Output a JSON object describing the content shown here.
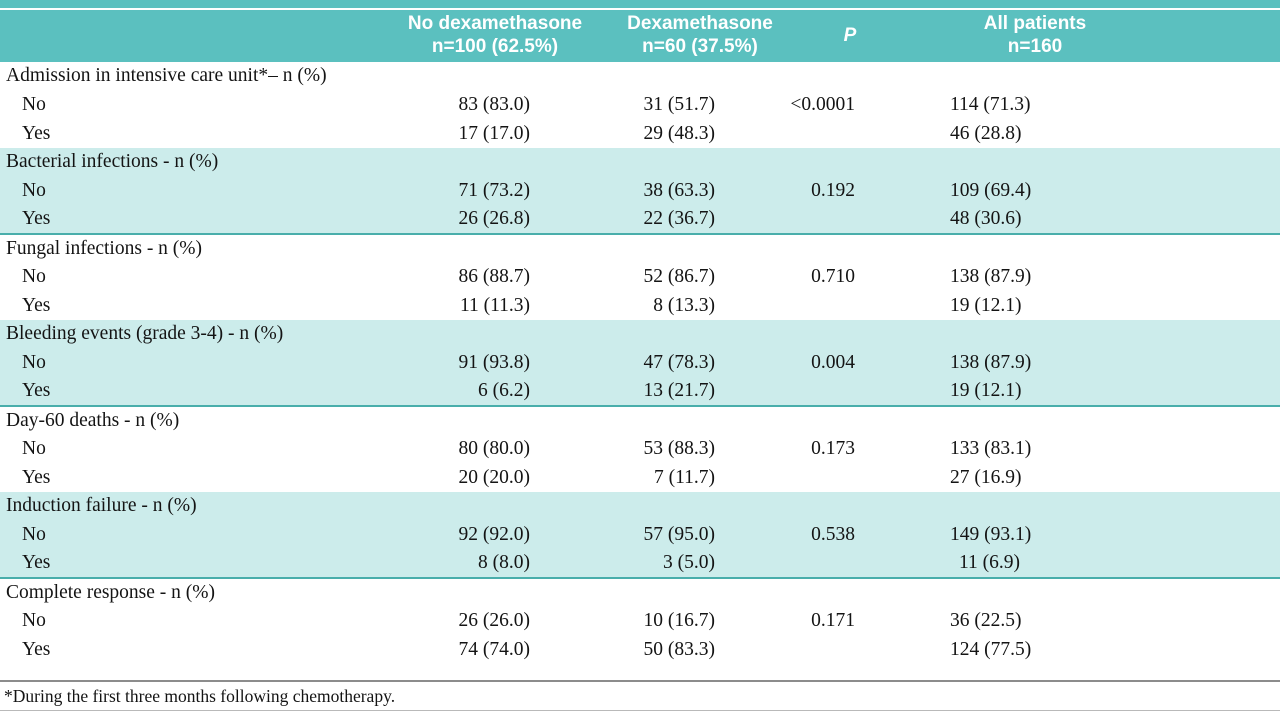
{
  "colors": {
    "header_teal": "#5bc0bf",
    "band_teal": "#cceceb",
    "rule_teal": "#49aeab",
    "rule_gray": "#8c8c8c"
  },
  "table": {
    "header": {
      "blank": "",
      "no_dex_line1": "No dexamethasone",
      "no_dex_line2": "n=100 (62.5%)",
      "dex_line1": "Dexamethasone",
      "dex_line2": "n=60 (37.5%)",
      "p": "P",
      "all_line1": "All patients",
      "all_line2": "n=160"
    },
    "sections": [
      {
        "title": "Admission in intensive care unit*– n (%)",
        "rows": [
          {
            "label": "No",
            "no_dex": "83 (83.0)",
            "dex": "31 (51.7)",
            "p": "<0.0001",
            "all": "114 (71.3)"
          },
          {
            "label": "Yes",
            "no_dex": "17 (17.0)",
            "dex": "29 (48.3)",
            "p": "",
            "all": "46 (28.8)"
          }
        ]
      },
      {
        "title": "Bacterial infections - n (%)",
        "rows": [
          {
            "label": "No",
            "no_dex": "71 (73.2)",
            "dex": "38 (63.3)",
            "p": "0.192",
            "all": "109 (69.4)"
          },
          {
            "label": "Yes",
            "no_dex": "26 (26.8)",
            "dex": "22 (36.7)",
            "p": "",
            "all": "48 (30.6)"
          }
        ]
      },
      {
        "title": "Fungal infections - n (%)",
        "rows": [
          {
            "label": "No",
            "no_dex": "86 (88.7)",
            "dex": "52 (86.7)",
            "p": "0.710",
            "all": "138 (87.9)"
          },
          {
            "label": "Yes",
            "no_dex": "11 (11.3)",
            "dex": "8 (13.3)",
            "p": "",
            "all": "19 (12.1)"
          }
        ]
      },
      {
        "title": "Bleeding events (grade 3-4) - n (%)",
        "rows": [
          {
            "label": "No",
            "no_dex": "91 (93.8)",
            "dex": "47 (78.3)",
            "p": "0.004",
            "all": "138 (87.9)"
          },
          {
            "label": "Yes",
            "no_dex": "6 (6.2)",
            "dex": "13 (21.7)",
            "p": "",
            "all": "19 (12.1)"
          }
        ]
      },
      {
        "title": "Day-60 deaths - n (%)",
        "rows": [
          {
            "label": "No",
            "no_dex": "80 (80.0)",
            "dex": "53 (88.3)",
            "p": "0.173",
            "all": "133 (83.1)"
          },
          {
            "label": "Yes",
            "no_dex": "20 (20.0)",
            "dex": "7 (11.7)",
            "p": "",
            "all": "27 (16.9)"
          }
        ]
      },
      {
        "title": "Induction failure - n (%)",
        "rows": [
          {
            "label": "No",
            "no_dex": "92 (92.0)",
            "dex": "57 (95.0)",
            "p": "0.538",
            "all": "149 (93.1)"
          },
          {
            "label": "Yes",
            "no_dex": "8 (8.0)",
            "dex": "3 (5.0)",
            "p": "",
            "all": "11 (6.9)"
          }
        ]
      },
      {
        "title": "Complete response - n (%)",
        "rows": [
          {
            "label": "No",
            "no_dex": "26 (26.0)",
            "dex": "10 (16.7)",
            "p": "0.171",
            "all": "36 (22.5)"
          },
          {
            "label": "Yes",
            "no_dex": "74 (74.0)",
            "dex": "50 (83.3)",
            "p": "",
            "all": "124 (77.5)"
          }
        ]
      }
    ],
    "footnote": "*During the first three months following chemotherapy."
  }
}
